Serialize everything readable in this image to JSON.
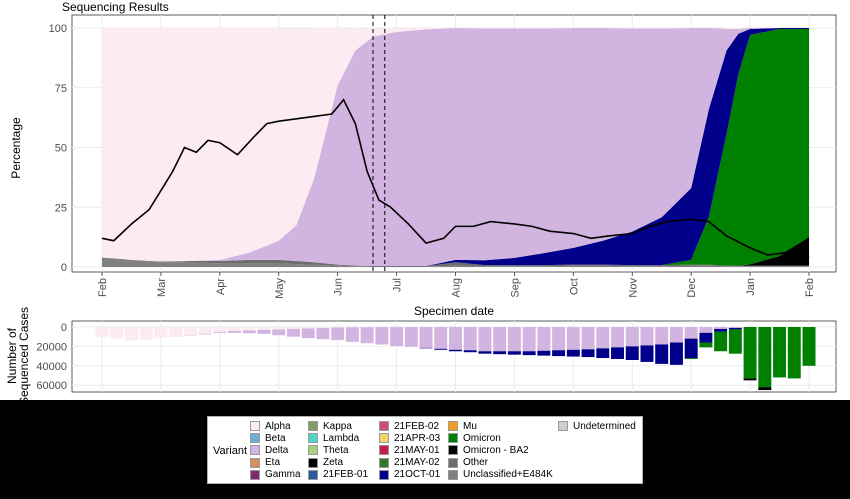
{
  "chart_data": [
    {
      "type": "area",
      "title": "Sequencing Results",
      "xlabel": "Specimen date",
      "ylabel": "Percentage",
      "x_ticks": [
        "Feb",
        "Mar",
        "Apr",
        "May",
        "Jun",
        "Jul",
        "Aug",
        "Sep",
        "Oct",
        "Nov",
        "Dec",
        "Jan",
        "Feb"
      ],
      "y_ticks": [
        "0",
        "25",
        "50",
        "75",
        "100"
      ],
      "ylim": [
        0,
        100
      ],
      "grid": true,
      "stack_order": [
        "Unclassified+E484K",
        "Other",
        "Omicron - BA2",
        "Omicron",
        "21OCT-01",
        "Delta",
        "Alpha"
      ],
      "x_month": [
        0,
        0.5,
        1,
        1.5,
        2,
        2.5,
        3,
        3.3,
        3.6,
        4,
        4.3,
        4.6,
        5,
        5.5,
        6,
        6.5,
        7,
        7.5,
        8,
        8.5,
        9,
        9.5,
        10,
        10.3,
        10.6,
        10.8,
        11,
        11.5,
        12
      ],
      "series": [
        {
          "name": "Unclassified+E484K",
          "values": [
            4,
            3,
            2,
            2,
            1.5,
            1.5,
            1.5,
            1.2,
            1,
            0.5,
            0.3,
            0.2,
            0.2,
            0.2,
            0.5,
            0.3,
            0.3,
            0.3,
            0.5,
            0.5,
            0.3,
            0.3,
            0.5,
            0.5,
            0.3,
            0.3,
            0.3,
            0.3,
            0.3
          ]
        },
        {
          "name": "Other",
          "values": [
            0,
            0,
            0.3,
            0.5,
            1,
            1.5,
            1.5,
            1.3,
            1,
            0.5,
            0.3,
            0.2,
            0.2,
            0.2,
            1.5,
            0.5,
            0.5,
            0.5,
            0.5,
            0.5,
            0.5,
            0.5,
            0.5,
            0.5,
            0.3,
            0.3,
            0.3,
            0.3,
            0.3
          ]
        },
        {
          "name": "Omicron - BA2",
          "values": [
            0,
            0,
            0,
            0,
            0,
            0,
            0,
            0,
            0,
            0,
            0,
            0,
            0,
            0,
            0,
            0,
            0,
            0,
            0,
            0,
            0,
            0,
            0,
            0,
            0,
            0,
            0.5,
            4,
            12
          ]
        },
        {
          "name": "Omicron",
          "values": [
            0,
            0,
            0,
            0,
            0,
            0,
            0,
            0,
            0,
            0,
            0,
            0,
            0,
            0,
            0,
            0,
            0,
            0,
            0,
            0,
            0,
            0,
            2,
            20,
            55,
            80,
            96,
            95,
            87
          ]
        },
        {
          "name": "21OCT-01",
          "values": [
            0,
            0,
            0,
            0,
            0,
            0,
            0,
            0,
            0,
            0,
            0,
            0,
            0,
            0,
            1,
            2,
            3,
            5,
            7,
            10,
            14,
            20,
            30,
            45,
            35,
            17,
            2.5,
            0.4,
            0.4
          ]
        },
        {
          "name": "Delta",
          "values": [
            0,
            0,
            0,
            0,
            0.5,
            3,
            8,
            15,
            35,
            75,
            90,
            96,
            98,
            99,
            97,
            97,
            96,
            94,
            92,
            89,
            85,
            79,
            67,
            34,
            9,
            2,
            0.4,
            0,
            0
          ]
        },
        {
          "name": "Alpha",
          "values": [
            96,
            97,
            97.7,
            97.5,
            97,
            94,
            89,
            82.2,
            63,
            24,
            9.1,
            3.4,
            1.4,
            0.6,
            0,
            0.2,
            0.2,
            0.2,
            0,
            0,
            0.2,
            0.2,
            0,
            0,
            0,
            0,
            0,
            0,
            0
          ]
        }
      ],
      "line_series": {
        "x_month": [
          0,
          0.2,
          0.5,
          0.8,
          1,
          1.2,
          1.4,
          1.6,
          1.8,
          2,
          2.3,
          2.6,
          2.8,
          3,
          3.3,
          3.6,
          3.9,
          4.1,
          4.3,
          4.5,
          4.7,
          4.9,
          5.2,
          5.5,
          5.8,
          6,
          6.3,
          6.6,
          7,
          7.3,
          7.6,
          8,
          8.3,
          8.6,
          9,
          9.3,
          9.6,
          10,
          10.3,
          10.6,
          11,
          11.3,
          11.6,
          11.8,
          12
        ],
        "values": [
          12,
          11,
          18,
          24,
          32,
          40,
          50,
          48,
          53,
          52,
          47,
          55,
          60,
          61,
          62,
          63,
          64,
          70,
          60,
          40,
          28,
          25,
          18,
          10,
          12,
          17,
          17,
          19,
          18,
          17,
          15,
          14,
          12,
          13,
          14,
          17,
          19,
          20,
          19,
          13,
          8,
          5,
          6,
          9,
          4
        ]
      },
      "vlines_month": [
        4.6,
        4.8
      ]
    },
    {
      "type": "bar",
      "ylabel": "Number of Sequenced Cases",
      "y_ticks": [
        "0",
        "20000",
        "40000",
        "60000"
      ],
      "ylim": [
        0,
        66000
      ],
      "orientation": "downward",
      "x_week": [
        0,
        0.25,
        0.5,
        0.75,
        1,
        1.25,
        1.5,
        1.75,
        2,
        2.25,
        2.5,
        2.75,
        3,
        3.25,
        3.5,
        3.75,
        4,
        4.25,
        4.5,
        4.75,
        5,
        5.25,
        5.5,
        5.75,
        6,
        6.25,
        6.5,
        6.75,
        7,
        7.25,
        7.5,
        7.75,
        8,
        8.25,
        8.5,
        8.75,
        9,
        9.25,
        9.5,
        9.75,
        10,
        10.25,
        10.5,
        10.75,
        11,
        11.25,
        11.5,
        11.75,
        12
      ],
      "series": [
        {
          "name": "Alpha",
          "values": [
            10000,
            12000,
            14000,
            13000,
            11000,
            10000,
            9000,
            7000,
            5000,
            4000,
            3500,
            3000,
            2500,
            2000,
            1500,
            1000,
            500,
            300,
            200,
            100,
            100,
            0,
            0,
            0,
            0,
            0,
            0,
            0,
            0,
            0,
            0,
            0,
            0,
            0,
            0,
            0,
            0,
            0,
            0,
            0,
            0,
            0,
            0,
            0,
            0,
            0,
            0,
            0,
            0
          ]
        },
        {
          "name": "Delta",
          "values": [
            0,
            0,
            0,
            0,
            0,
            100,
            300,
            700,
            1000,
            2000,
            3000,
            4000,
            6000,
            8000,
            10000,
            11500,
            13000,
            15000,
            16500,
            18000,
            19500,
            20500,
            21500,
            22500,
            23500,
            24000,
            25000,
            25000,
            25000,
            25000,
            24500,
            24000,
            23500,
            23000,
            22000,
            21000,
            20000,
            19000,
            18000,
            16000,
            12000,
            6000,
            2000,
            1000,
            0,
            0,
            0,
            0,
            0
          ]
        },
        {
          "name": "21OCT-01",
          "values": [
            0,
            0,
            0,
            0,
            0,
            0,
            0,
            0,
            0,
            0,
            0,
            0,
            0,
            0,
            0,
            0,
            0,
            0,
            0,
            0,
            0,
            0,
            500,
            1000,
            1500,
            2000,
            2500,
            3000,
            3500,
            4000,
            5000,
            6000,
            7000,
            8000,
            10000,
            12000,
            14000,
            17000,
            20000,
            23000,
            20000,
            10000,
            3000,
            1500,
            0,
            0,
            0,
            0,
            0
          ]
        },
        {
          "name": "Omicron",
          "values": [
            0,
            0,
            0,
            0,
            0,
            0,
            0,
            0,
            0,
            0,
            0,
            0,
            0,
            0,
            0,
            0,
            0,
            0,
            0,
            0,
            0,
            0,
            0,
            0,
            0,
            0,
            0,
            0,
            0,
            0,
            0,
            0,
            0,
            0,
            0,
            0,
            0,
            0,
            0,
            0,
            1000,
            5000,
            20000,
            25000,
            53000,
            62000,
            52000,
            53000,
            40000
          ]
        },
        {
          "name": "Omicron - BA2",
          "values": [
            0,
            0,
            0,
            0,
            0,
            0,
            0,
            0,
            0,
            0,
            0,
            0,
            0,
            0,
            0,
            0,
            0,
            0,
            0,
            0,
            0,
            0,
            0,
            0,
            0,
            0,
            0,
            0,
            0,
            0,
            0,
            0,
            0,
            0,
            0,
            0,
            0,
            0,
            0,
            0,
            0,
            0,
            0,
            0,
            2000,
            3000,
            0,
            0,
            0
          ]
        }
      ]
    }
  ],
  "colors": {
    "Alpha": "#fcebf1",
    "Beta": "#6baed6",
    "Delta": "#d2b4e0",
    "Eta": "#d98c5f",
    "Gamma": "#7b2d6f",
    "Kappa": "#7f9a6a",
    "Lambda": "#4fd6c8",
    "Theta": "#a6d17e",
    "Zeta": "#000000",
    "21FEB-01": "#2c5aa0",
    "21FEB-02": "#cc4c82",
    "21APR-03": "#f1d570",
    "21MAY-01": "#c21f4b",
    "21MAY-02": "#2d7a2d",
    "21OCT-01": "#00008b",
    "Mu": "#f0a020",
    "Omicron": "#008000",
    "Omicron - BA2": "#000000",
    "Other": "#6d6d6d",
    "Unclassified+E484K": "#808080",
    "Undetermined": "#cfcfcf"
  },
  "legend": {
    "title": "Variant",
    "columns": [
      [
        "Alpha",
        "Beta",
        "Delta",
        "Eta",
        "Gamma"
      ],
      [
        "Kappa",
        "Lambda",
        "Theta",
        "Zeta",
        "21FEB-01"
      ],
      [
        "21FEB-02",
        "21APR-03",
        "21MAY-01",
        "21MAY-02",
        "21OCT-01"
      ],
      [
        "Mu",
        "Omicron",
        "Omicron - BA2",
        "Other",
        "Unclassified+E484K"
      ],
      [
        "Undetermined"
      ]
    ]
  }
}
